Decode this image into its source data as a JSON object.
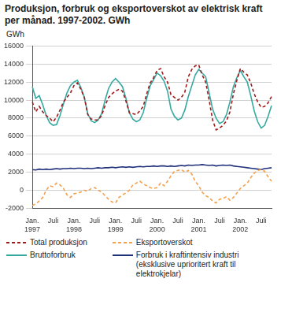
{
  "chart_data": {
    "type": "line",
    "title": "Produksjon, forbruk og eksportoverskot av elektrisk kraft per månad. 1997-2002. GWh",
    "y_label": "GWh",
    "categories": [
      "Jan. 1997",
      null,
      null,
      null,
      null,
      null,
      "Juli",
      null,
      null,
      null,
      null,
      null,
      "Jan. 1998",
      null,
      null,
      null,
      null,
      null,
      "Juli",
      null,
      null,
      null,
      null,
      null,
      "Jan. 1999",
      null,
      null,
      null,
      null,
      null,
      "Juli",
      null,
      null,
      null,
      null,
      null,
      "Jan. 2000",
      null,
      null,
      null,
      null,
      null,
      "Juli",
      null,
      null,
      null,
      null,
      null,
      "Jan. 2001",
      null,
      null,
      null,
      null,
      null,
      "Juli",
      null,
      null,
      null,
      null,
      null,
      "Jan. 2002",
      null,
      null,
      null,
      null,
      null,
      "Juli",
      null,
      null,
      null
    ],
    "series": [
      {
        "name": "Total produksjon",
        "color": "#9e1b1b",
        "line_style": "dashed",
        "values": [
          9800,
          8700,
          9300,
          8700,
          8300,
          8000,
          7600,
          8100,
          8900,
          9800,
          10300,
          10800,
          11600,
          11900,
          11200,
          10300,
          8400,
          7900,
          7800,
          7800,
          8300,
          9400,
          10300,
          10700,
          11000,
          11200,
          11000,
          9900,
          8600,
          8500,
          8400,
          8800,
          9300,
          10700,
          11900,
          12500,
          13300,
          13500,
          12600,
          12000,
          10600,
          10300,
          10000,
          10300,
          10900,
          12600,
          13400,
          13800,
          13900,
          12800,
          12000,
          10000,
          7800,
          6700,
          6900,
          7200,
          7700,
          8700,
          10700,
          12200,
          13500,
          13100,
          12800,
          11900,
          10700,
          9800,
          9200,
          9300,
          9700,
          10400
        ]
      },
      {
        "name": "Eksportoverskot",
        "color": "#f5a04a",
        "line_style": "dashed",
        "values": [
          -1700,
          -1500,
          -1200,
          -800,
          0,
          500,
          400,
          800,
          600,
          200,
          -500,
          -800,
          -400,
          -300,
          -200,
          0,
          -100,
          200,
          300,
          0,
          -200,
          -600,
          -1000,
          -1300,
          -1400,
          -800,
          -500,
          -300,
          0,
          600,
          800,
          1000,
          700,
          500,
          300,
          200,
          300,
          800,
          500,
          1000,
          1600,
          2100,
          2200,
          2300,
          2000,
          2200,
          1800,
          1000,
          500,
          -200,
          -600,
          -800,
          -1200,
          -1400,
          -1000,
          -900,
          -700,
          -1100,
          -800,
          -300,
          200,
          500,
          800,
          1400,
          1900,
          2200,
          2300,
          2100,
          1500,
          1000
        ]
      },
      {
        "name": "Bruttoforbruk",
        "color": "#35a9a0",
        "line_style": "solid",
        "values": [
          11500,
          10200,
          10500,
          9500,
          8300,
          7500,
          7200,
          7300,
          8300,
          9600,
          10800,
          11600,
          12000,
          12200,
          11400,
          10300,
          8500,
          7700,
          7500,
          7800,
          8500,
          10000,
          11300,
          12000,
          12400,
          12000,
          11500,
          10200,
          8600,
          7900,
          7600,
          7800,
          8600,
          10200,
          11600,
          12300,
          13000,
          12700,
          12100,
          11000,
          9000,
          8200,
          7800,
          8000,
          8900,
          10400,
          11600,
          12800,
          13400,
          13000,
          12600,
          10800,
          9000,
          8000,
          7400,
          7600,
          8400,
          9800,
          11500,
          12500,
          13300,
          12600,
          12000,
          10500,
          8800,
          7600,
          6900,
          7200,
          8200,
          9400
        ]
      },
      {
        "name": "Forbruk i kraftintensiv industri (eksklusive uprioritert kraft til elektrokjelar)",
        "color": "#1f2f7a",
        "line_style": "solid",
        "values": [
          2300,
          2250,
          2350,
          2300,
          2350,
          2300,
          2350,
          2400,
          2350,
          2400,
          2400,
          2450,
          2400,
          2450,
          2450,
          2400,
          2450,
          2400,
          2450,
          2500,
          2450,
          2500,
          2500,
          2550,
          2500,
          2550,
          2600,
          2550,
          2600,
          2550,
          2600,
          2650,
          2600,
          2650,
          2650,
          2700,
          2650,
          2700,
          2700,
          2650,
          2700,
          2650,
          2700,
          2750,
          2700,
          2800,
          2750,
          2800,
          2800,
          2850,
          2800,
          2750,
          2800,
          2700,
          2750,
          2800,
          2750,
          2800,
          2700,
          2650,
          2600,
          2550,
          2500,
          2450,
          2400,
          2350,
          2300,
          2400,
          2450,
          2500
        ]
      }
    ],
    "ylim": [
      -2000,
      16000
    ],
    "yticks": [
      -2000,
      0,
      2000,
      4000,
      6000,
      8000,
      10000,
      12000,
      14000,
      16000
    ],
    "grid": true,
    "legend": "bottom"
  }
}
